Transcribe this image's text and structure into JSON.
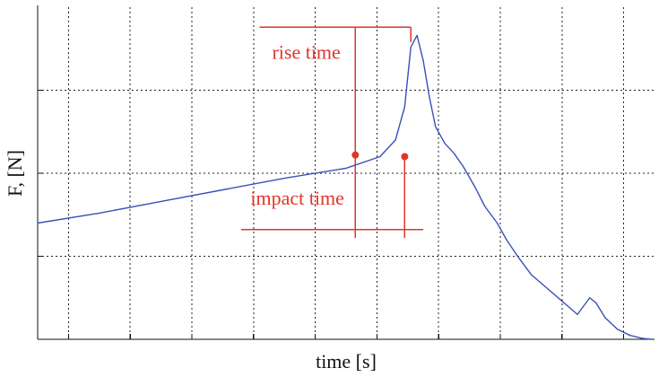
{
  "chart_data": {
    "type": "line",
    "title": "",
    "xlabel": "time [s]",
    "ylabel": "F, [N]",
    "grid": true,
    "x_ticks_labeled": false,
    "y_ticks_labeled": false,
    "xlim": [
      0,
      10
    ],
    "ylim": [
      0,
      10
    ],
    "x_grid": [
      0.5,
      1.5,
      2.5,
      3.5,
      4.5,
      5.5,
      6.5,
      7.5,
      8.5,
      9.5
    ],
    "y_grid": [
      2.5,
      5.0,
      7.5
    ],
    "series": [
      {
        "x": [
          0,
          1,
          2,
          3,
          4,
          5,
          5.55,
          5.8,
          5.95,
          6.05,
          6.15,
          6.25,
          6.35,
          6.45,
          6.6,
          6.75,
          6.9,
          7.1,
          7.25,
          7.45,
          7.6,
          7.8,
          8.0,
          8.25,
          8.5,
          8.75,
          8.95,
          9.05,
          9.2,
          9.4,
          9.6,
          9.8,
          9.95
        ],
        "y": [
          3.5,
          3.8,
          4.15,
          4.5,
          4.85,
          5.15,
          5.5,
          6.0,
          7.0,
          8.8,
          9.15,
          8.4,
          7.3,
          6.4,
          5.9,
          5.6,
          5.2,
          4.55,
          4.0,
          3.5,
          3.0,
          2.45,
          1.95,
          1.55,
          1.15,
          0.75,
          1.25,
          1.1,
          0.65,
          0.3,
          0.12,
          0.03,
          0.0
        ],
        "color": "#3a50b8"
      }
    ],
    "annotations": [
      {
        "label": "rise time",
        "x_start": 3.6,
        "x_end": 6.05,
        "y": 9.4,
        "color": "#e1352a"
      },
      {
        "label": "impact time",
        "x_start": 3.3,
        "x_end": 6.25,
        "y": 3.3,
        "color": "#e1352a"
      }
    ],
    "points": [
      {
        "x": 5.15,
        "y": 5.55,
        "color": "#e1352a"
      },
      {
        "x": 5.95,
        "y": 5.5,
        "color": "#e1352a"
      }
    ],
    "reference_lines": [
      {
        "x": 5.15,
        "y_min": 3.05,
        "y_max": 9.4,
        "color": "#e1352a"
      },
      {
        "x": 5.95,
        "y_min": 3.05,
        "y_max": 5.5,
        "color": "#e1352a"
      },
      {
        "x": 6.05,
        "y_min": 8.95,
        "y_max": 9.4,
        "color": "#e1352a"
      }
    ]
  }
}
